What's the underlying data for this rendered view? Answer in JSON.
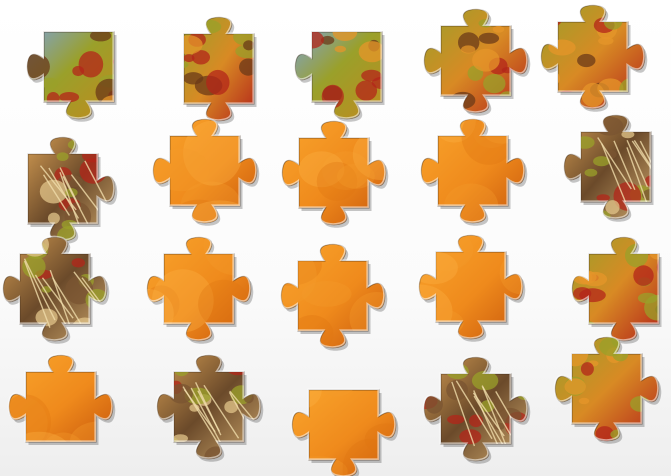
{
  "app": {
    "name": "jigsaw-puzzle-board"
  },
  "colors": {
    "board": "#f7f7f7",
    "orange_light": "#f9a42c",
    "orange_dark": "#c8580c",
    "sky": "#7fa3c9",
    "leaf_green": "#9aa02a",
    "leaf_red": "#b3251a",
    "trunk": "#6b4a2a"
  },
  "pieces": [
    {
      "id": "r1c1",
      "style": "sky-leaf",
      "tabs": [
        0,
        0,
        1,
        1
      ]
    },
    {
      "id": "r1c2",
      "style": "foliage",
      "tabs": [
        1,
        0,
        1,
        0
      ]
    },
    {
      "id": "r1c3",
      "style": "sky-leaf",
      "tabs": [
        0,
        0,
        1,
        1
      ]
    },
    {
      "id": "r1c4",
      "style": "foliage",
      "tabs": [
        1,
        1,
        1,
        1
      ]
    },
    {
      "id": "r1c5",
      "style": "foliage",
      "tabs": [
        1,
        1,
        1,
        1
      ]
    },
    {
      "id": "r2c1",
      "style": "trunk",
      "tabs": [
        1,
        1,
        1,
        0
      ]
    },
    {
      "id": "r2c2",
      "style": "orange",
      "tabs": [
        1,
        1,
        1,
        1
      ]
    },
    {
      "id": "r2c3",
      "style": "orange",
      "tabs": [
        1,
        1,
        1,
        1
      ]
    },
    {
      "id": "r2c4",
      "style": "orange",
      "tabs": [
        1,
        1,
        1,
        1
      ]
    },
    {
      "id": "r2c5",
      "style": "trunk",
      "tabs": [
        1,
        0,
        1,
        1
      ]
    },
    {
      "id": "r3c1",
      "style": "trunk",
      "tabs": [
        1,
        1,
        1,
        1
      ]
    },
    {
      "id": "r3c2",
      "style": "orange",
      "tabs": [
        1,
        1,
        1,
        1
      ]
    },
    {
      "id": "r3c3",
      "style": "orange",
      "tabs": [
        1,
        1,
        1,
        1
      ]
    },
    {
      "id": "r3c4",
      "style": "orange",
      "tabs": [
        1,
        1,
        1,
        1
      ]
    },
    {
      "id": "r3c5",
      "style": "foliage",
      "tabs": [
        1,
        0,
        1,
        1
      ]
    },
    {
      "id": "r4c1",
      "style": "orange",
      "tabs": [
        1,
        1,
        0,
        1
      ]
    },
    {
      "id": "r4c2",
      "style": "trunk",
      "tabs": [
        1,
        1,
        1,
        1
      ]
    },
    {
      "id": "r4c3",
      "style": "orange",
      "tabs": [
        0,
        1,
        1,
        1
      ]
    },
    {
      "id": "r4c4",
      "style": "trunk",
      "tabs": [
        1,
        1,
        1,
        1
      ]
    },
    {
      "id": "r4c5",
      "style": "foliage",
      "tabs": [
        1,
        1,
        1,
        1
      ]
    }
  ]
}
